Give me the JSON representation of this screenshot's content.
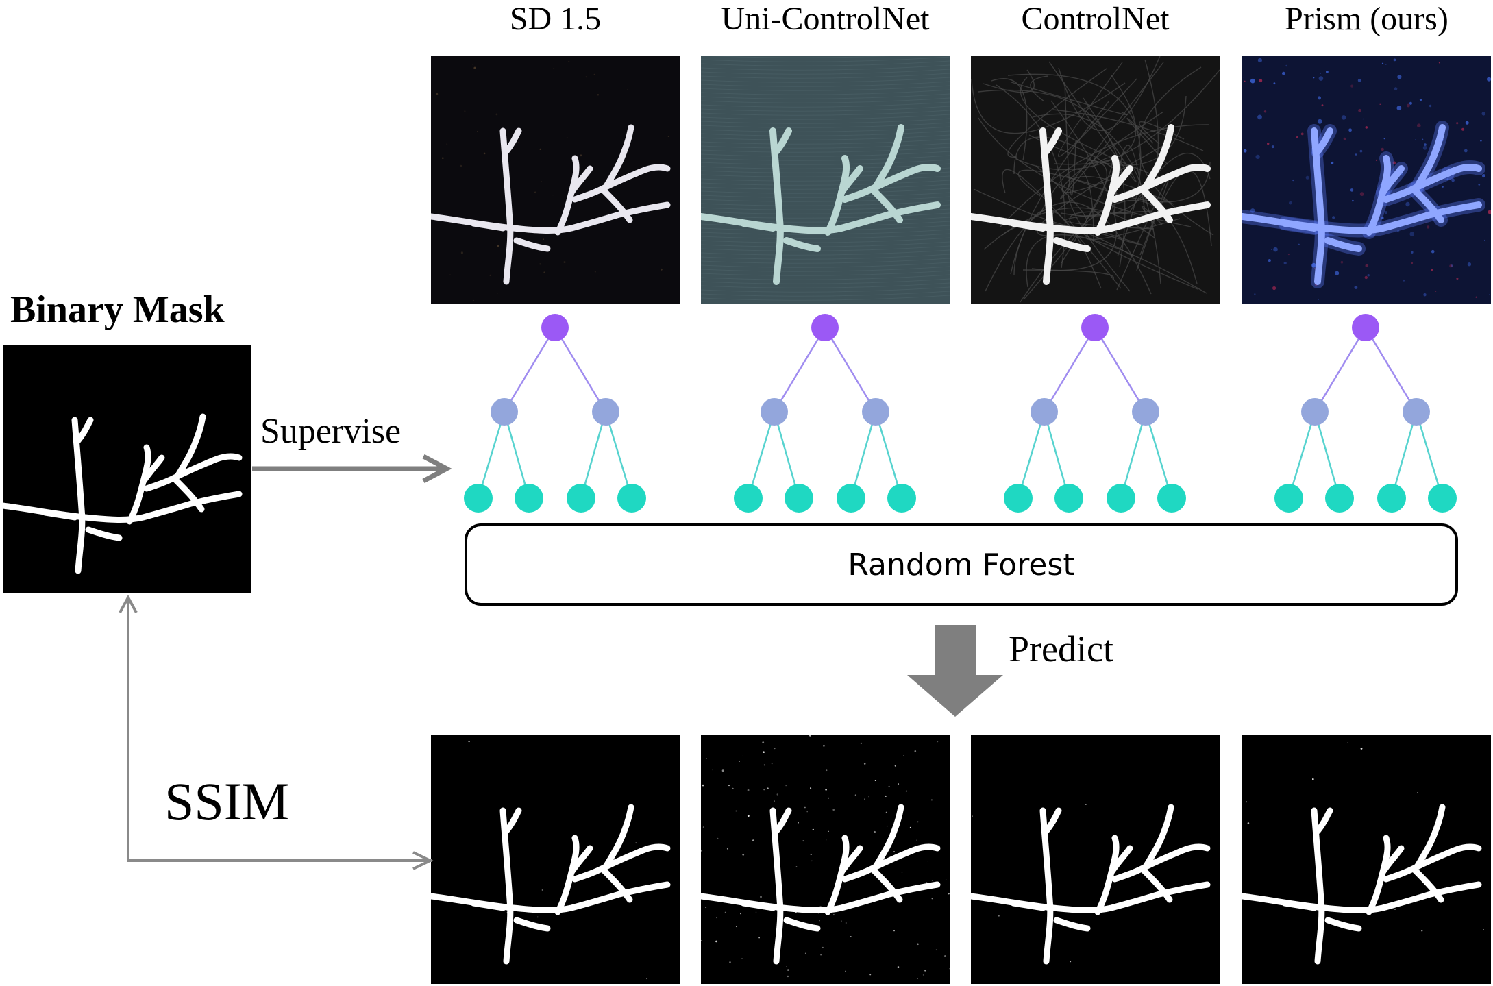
{
  "columns": [
    {
      "title": "SD 1.5",
      "style": "sd15",
      "bg": "#0b0a0e",
      "branch": "#e9e7ef"
    },
    {
      "title": "Uni-ControlNet",
      "style": "uni",
      "bg": "#3e5258",
      "branch": "#b9d6d2"
    },
    {
      "title": "ControlNet",
      "style": "controlnet",
      "bg": "#141414",
      "branch": "#f2f2f2"
    },
    {
      "title": "Prism (ours)",
      "style": "prism",
      "bg": "#0d1434",
      "branch": "#8fa6ff"
    }
  ],
  "binary_mask": {
    "title": "Binary Mask"
  },
  "labels": {
    "supervise": "Supervise",
    "forest": "Random Forest",
    "predict": "Predict",
    "ssim": "SSIM"
  },
  "tree_colors": {
    "root": "#9b59f5",
    "mid": "#93a6dc",
    "leaf": "#1fd8c2",
    "edge_top": "#a08cf0",
    "edge_bottom": "#57d3cf"
  },
  "arrow_color": "#7f7f7f"
}
